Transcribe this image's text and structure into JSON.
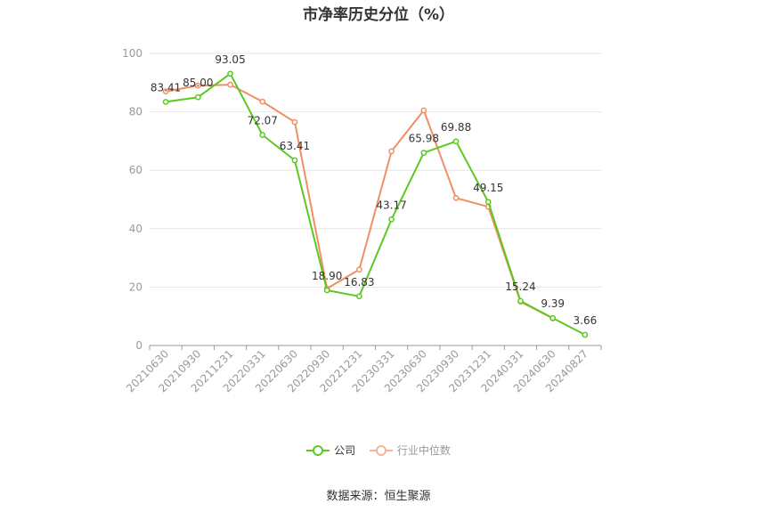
{
  "chart_data": {
    "type": "line",
    "title": "市净率历史分位（%）",
    "categories": [
      "20210630",
      "20210930",
      "20211231",
      "20220331",
      "20220630",
      "20220930",
      "20221231",
      "20230331",
      "20230630",
      "20230930",
      "20231231",
      "20240331",
      "20240630",
      "20240827"
    ],
    "series": [
      {
        "name": "公司",
        "color": "#5ac922",
        "values": [
          83.41,
          85.0,
          93.05,
          72.07,
          63.41,
          18.9,
          16.83,
          43.17,
          65.98,
          69.88,
          49.15,
          15.24,
          9.39,
          3.66
        ],
        "labels": [
          "83.41",
          "85.00",
          "93.05",
          "72.07",
          "63.41",
          "18.90",
          "16.83",
          "43.17",
          "65.98",
          "69.88",
          "49.15",
          "15.24",
          "9.39",
          "3.66"
        ]
      },
      {
        "name": "行业中位数",
        "color": "#f08e64",
        "values": [
          87.0,
          89.0,
          89.3,
          83.5,
          76.5,
          19.5,
          26.0,
          66.5,
          80.5,
          50.5,
          47.5,
          15.0,
          9.3,
          null
        ]
      }
    ],
    "ylim": [
      0,
      100
    ],
    "yticks": [
      0,
      20,
      40,
      60,
      80,
      100
    ],
    "grid": true,
    "legend_position": "bottom"
  },
  "source": "数据来源：恒生聚源"
}
